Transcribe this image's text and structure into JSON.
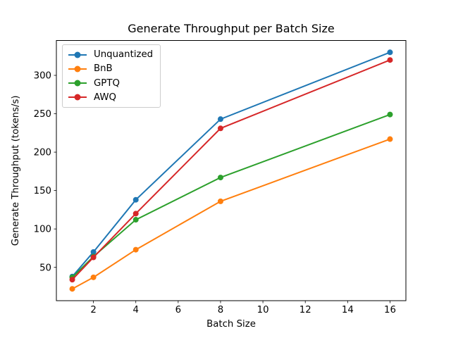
{
  "chart_data": {
    "type": "line",
    "title": "Generate Throughput per Batch Size",
    "xlabel": "Batch Size",
    "ylabel": "Generate Throughput (tokens/s)",
    "x": [
      1,
      2,
      4,
      8,
      16
    ],
    "series": [
      {
        "name": "Unquantized",
        "color": "#1f77b4",
        "values": [
          38,
          70,
          138,
          243,
          330
        ]
      },
      {
        "name": "BnB",
        "color": "#ff7f0e",
        "values": [
          22,
          37,
          73,
          136,
          217
        ]
      },
      {
        "name": "GPTQ",
        "color": "#2ca02c",
        "values": [
          37,
          64,
          112,
          167,
          249
        ]
      },
      {
        "name": "AWQ",
        "color": "#d62728",
        "values": [
          34,
          63,
          120,
          231,
          320
        ]
      }
    ],
    "xticks": [
      2,
      4,
      6,
      8,
      10,
      12,
      14,
      16
    ],
    "yticks": [
      50,
      100,
      150,
      200,
      250,
      300
    ],
    "xlim": [
      0.25,
      16.75
    ],
    "ylim": [
      6.6,
      345.4
    ],
    "grid": false,
    "marker": "o",
    "legend_position": "upper left",
    "legend_border_color": "#cccccc",
    "axis_color": "#000000"
  }
}
